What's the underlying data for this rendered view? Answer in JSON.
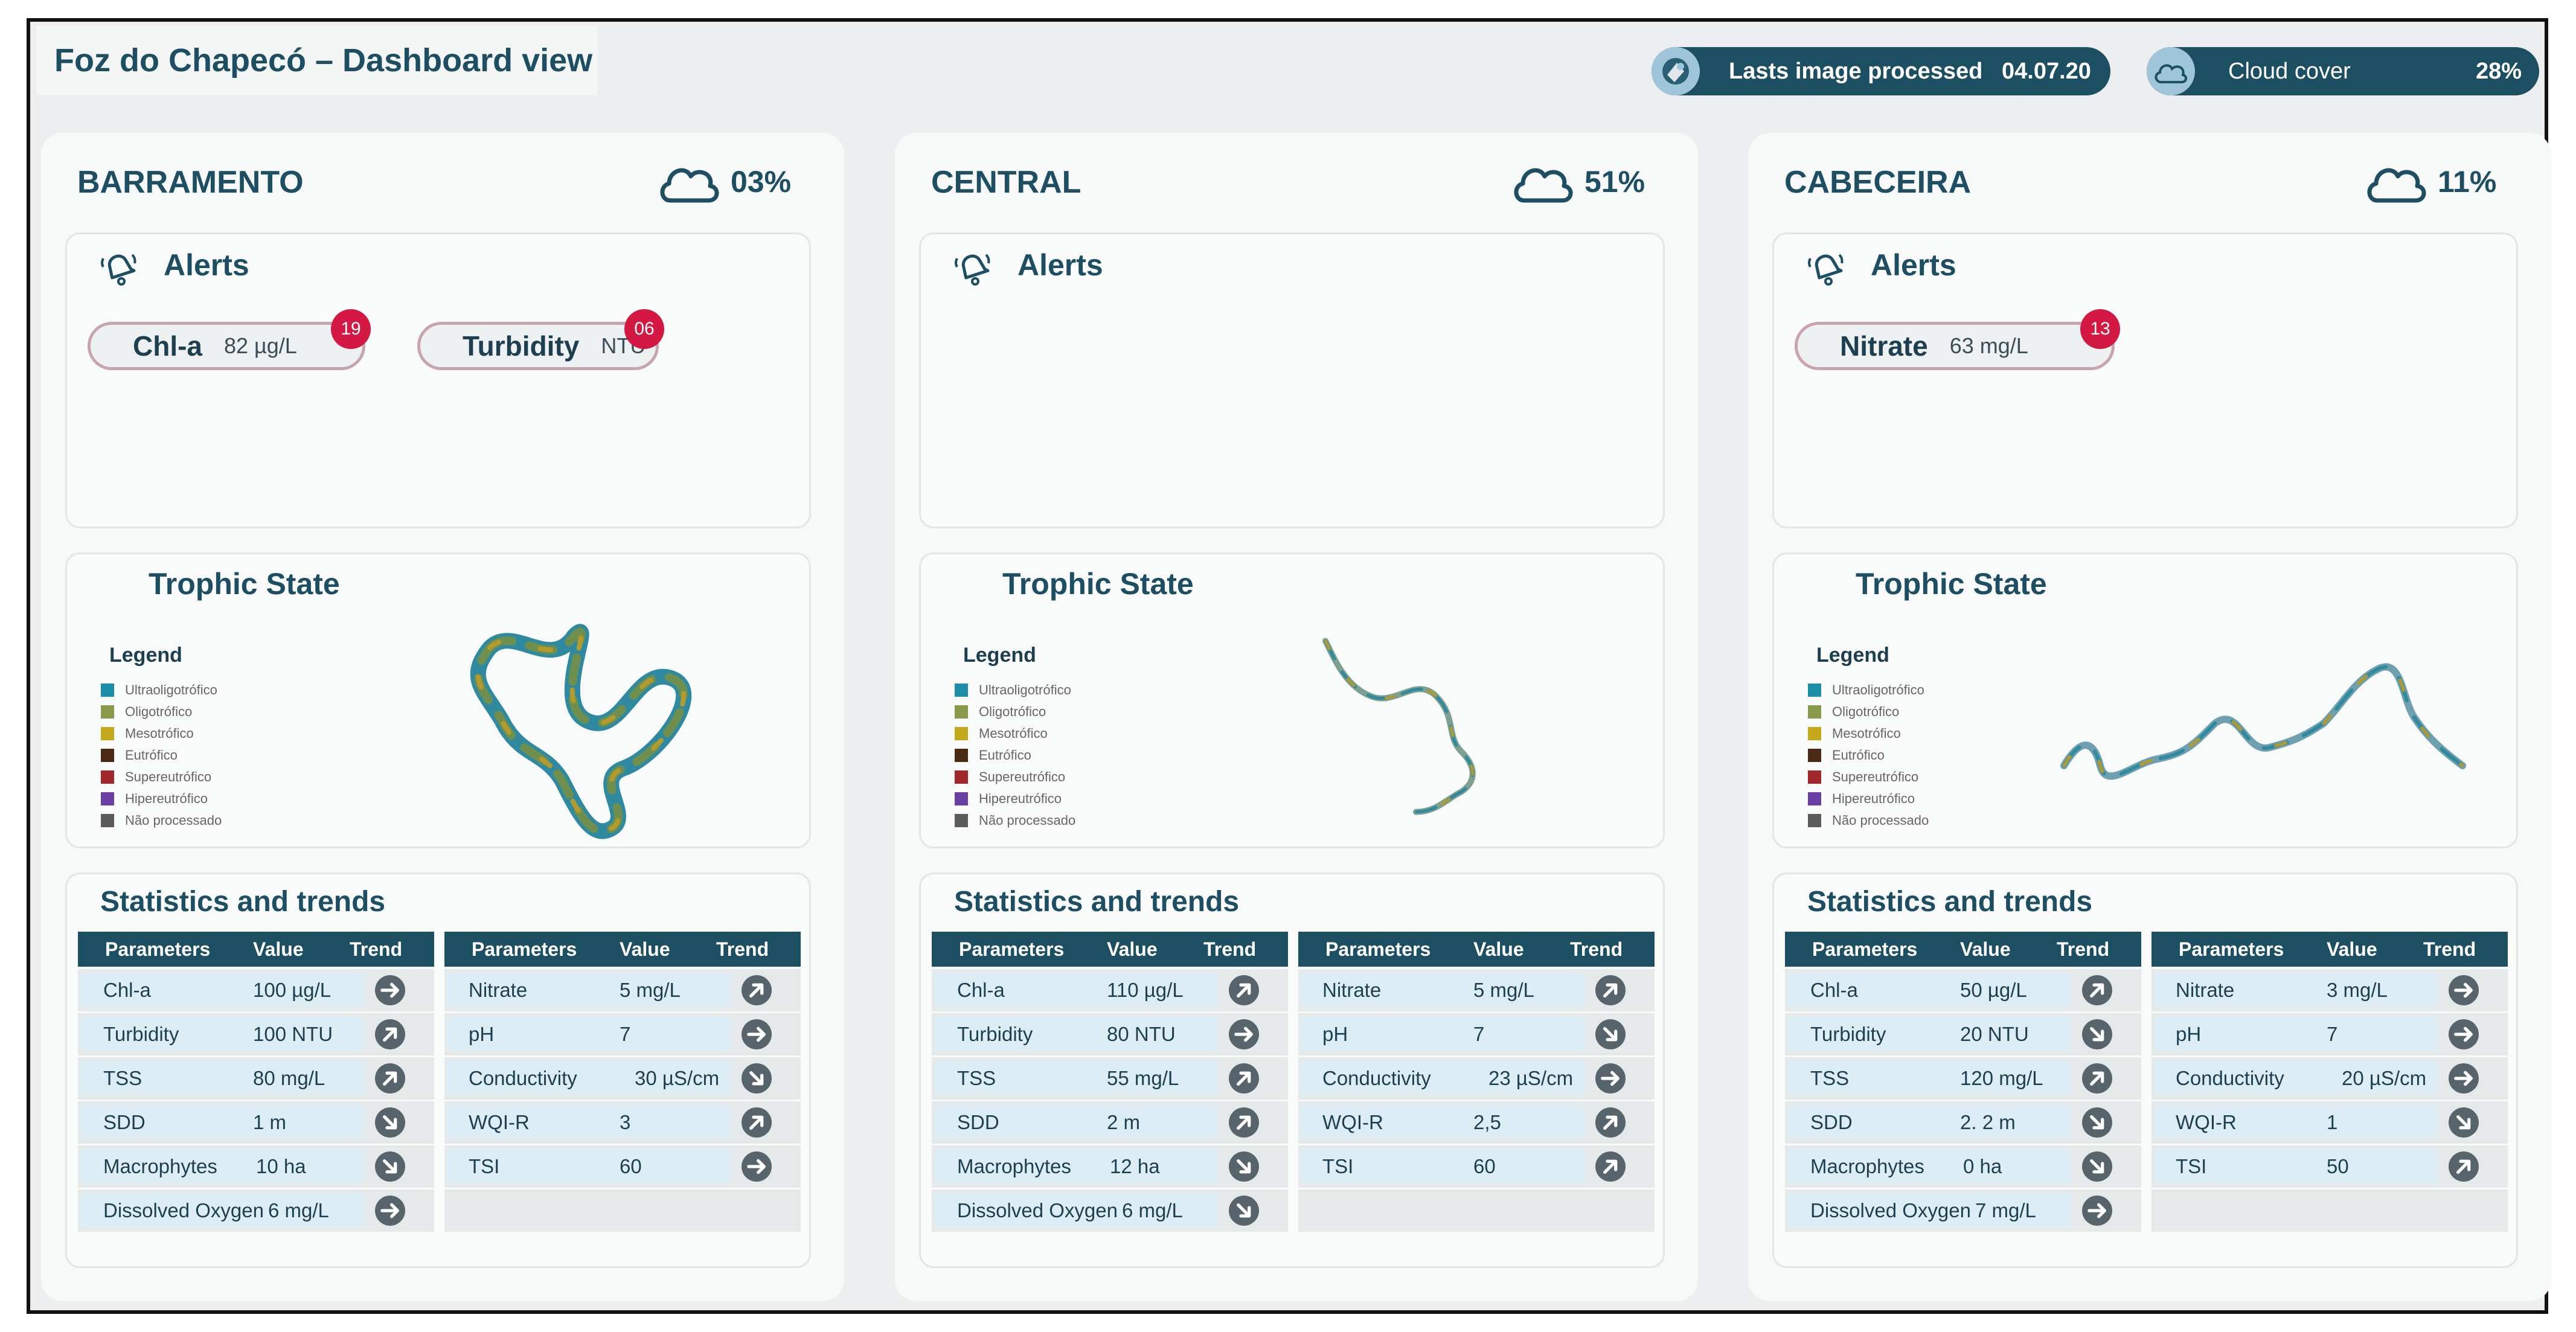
{
  "header": {
    "title": "Foz do Chapecó – Dashboard view"
  },
  "last_image": {
    "label": "Lasts image processed",
    "value": "04.07.20"
  },
  "cloud_cover": {
    "label": "Cloud cover",
    "value": "28%"
  },
  "colors": {
    "accent": "#1d4f63",
    "alert": "#d21843"
  },
  "legend": {
    "title": "Legend",
    "items": [
      {
        "label": "Ultraoligotrófico",
        "color": "#1d8ea8"
      },
      {
        "label": "Oligotrófico",
        "color": "#8a9a4c"
      },
      {
        "label": "Mesotrófico",
        "color": "#c4a91c"
      },
      {
        "label": "Eutrófico",
        "color": "#4a2a12"
      },
      {
        "label": "Supereutrófico",
        "color": "#a0282a"
      },
      {
        "label": "Hipereutrófico",
        "color": "#6a3fa3"
      },
      {
        "label": "Não processado",
        "color": "#5b5b5b"
      }
    ]
  },
  "labels": {
    "alerts": "Alerts",
    "trophic": "Trophic State",
    "stats": "Statistics and trends",
    "col_param": "Parameters",
    "col_value": "Value",
    "col_trend": "Trend"
  },
  "panels": [
    {
      "name": "BARRAMENTO",
      "cloud": "03%",
      "alerts": [
        {
          "name": "Chl-a",
          "value": "82 µg/L",
          "count": "19"
        },
        {
          "name": "Turbidity",
          "value": "NTU",
          "count": "06"
        }
      ],
      "left": [
        {
          "param": "Chl-a",
          "value": "100 µg/L",
          "trend": "flat"
        },
        {
          "param": "Turbidity",
          "value": "100 NTU",
          "trend": "up"
        },
        {
          "param": "TSS",
          "value": "80 mg/L",
          "trend": "up"
        },
        {
          "param": "SDD",
          "value": "1 m",
          "trend": "down"
        },
        {
          "param": "Macrophytes",
          "value": "10 ha",
          "trend": "down"
        },
        {
          "param": "Dissolved Oxygen",
          "value": "6 mg/L",
          "trend": "flat"
        }
      ],
      "right": [
        {
          "param": "Nitrate",
          "value": "5 mg/L",
          "trend": "up"
        },
        {
          "param": "pH",
          "value": "7",
          "trend": "flat"
        },
        {
          "param": "Conductivity",
          "value": "30 µS/cm",
          "trend": "down"
        },
        {
          "param": "WQI-R",
          "value": "3",
          "trend": "up"
        },
        {
          "param": "TSI",
          "value": "60",
          "trend": "flat"
        }
      ]
    },
    {
      "name": "CENTRAL",
      "cloud": "51%",
      "alerts": [],
      "left": [
        {
          "param": "Chl-a",
          "value": "110 µg/L",
          "trend": "up"
        },
        {
          "param": "Turbidity",
          "value": "80 NTU",
          "trend": "flat"
        },
        {
          "param": "TSS",
          "value": "55 mg/L",
          "trend": "up"
        },
        {
          "param": "SDD",
          "value": "2 m",
          "trend": "up"
        },
        {
          "param": "Macrophytes",
          "value": "12 ha",
          "trend": "down"
        },
        {
          "param": "Dissolved Oxygen",
          "value": "6 mg/L",
          "trend": "down"
        }
      ],
      "right": [
        {
          "param": "Nitrate",
          "value": "5 mg/L",
          "trend": "up"
        },
        {
          "param": "pH",
          "value": "7",
          "trend": "down"
        },
        {
          "param": "Conductivity",
          "value": "23 µS/cm",
          "trend": "flat"
        },
        {
          "param": "WQI-R",
          "value": "2,5",
          "trend": "up"
        },
        {
          "param": "TSI",
          "value": "60",
          "trend": "up"
        }
      ]
    },
    {
      "name": "CABECEIRA",
      "cloud": "11%",
      "alerts": [
        {
          "name": "Nitrate",
          "value": "63 mg/L",
          "count": "13"
        }
      ],
      "left": [
        {
          "param": "Chl-a",
          "value": "50 µg/L",
          "trend": "up"
        },
        {
          "param": "Turbidity",
          "value": "20 NTU",
          "trend": "down"
        },
        {
          "param": "TSS",
          "value": "120 mg/L",
          "trend": "up"
        },
        {
          "param": "SDD",
          "value": "2. 2 m",
          "trend": "down"
        },
        {
          "param": "Macrophytes",
          "value": "0 ha",
          "trend": "down"
        },
        {
          "param": "Dissolved Oxygen",
          "value": "7 mg/L",
          "trend": "flat"
        }
      ],
      "right": [
        {
          "param": "Nitrate",
          "value": "3 mg/L",
          "trend": "flat"
        },
        {
          "param": "pH",
          "value": "7",
          "trend": "flat"
        },
        {
          "param": "Conductivity",
          "value": "20 µS/cm",
          "trend": "flat"
        },
        {
          "param": "WQI-R",
          "value": "1",
          "trend": "down"
        },
        {
          "param": "TSI",
          "value": "50",
          "trend": "up"
        }
      ]
    }
  ]
}
